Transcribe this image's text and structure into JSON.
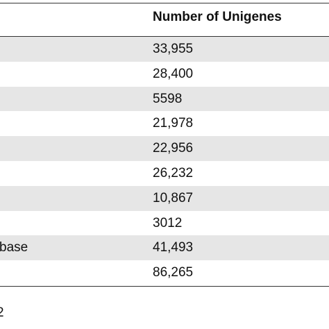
{
  "table": {
    "header": "Number of Unigenes",
    "rows": [
      {
        "value": "33,955"
      },
      {
        "value": "28,400"
      },
      {
        "value": "5598"
      },
      {
        "value": "21,978"
      },
      {
        "value": "22,956"
      },
      {
        "value": "26,232"
      },
      {
        "value": "10,867"
      },
      {
        "value": "3012"
      },
      {
        "label": "base",
        "value": "41,493"
      },
      {
        "value": "86,265"
      }
    ],
    "footnote": "2"
  }
}
